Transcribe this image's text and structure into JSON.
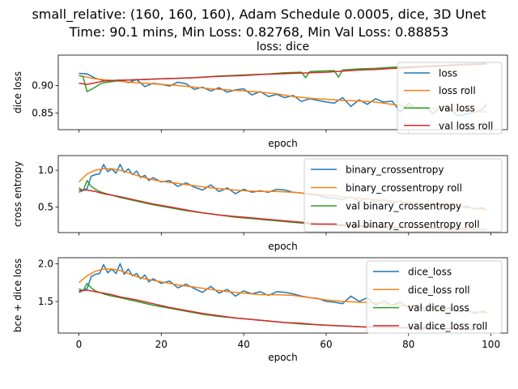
{
  "suptitle": [
    "small_relative: (160, 160, 160), Adam Schedule 0.0005, dice, 3D Unet",
    "Time: 90.1 mins, Min Loss: 0.82768, Min Val Loss: 0.88853"
  ],
  "colors": {
    "blue": "#1f77b4",
    "orange": "#ff7f0e",
    "green": "#2ca02c",
    "red": "#d62728"
  },
  "chart_data": [
    {
      "type": "line",
      "title": "loss: dice",
      "xlabel": "epoch",
      "ylabel": "dice loss",
      "xlim": [
        -5,
        104
      ],
      "ylim": [
        0.82,
        0.955
      ],
      "xticks": [
        0,
        20,
        40,
        60,
        80,
        100
      ],
      "xticklabels": [
        "",
        "",
        "",
        "",
        "",
        ""
      ],
      "yticks": [
        0.85,
        0.9
      ],
      "yticklabels": [
        "0.85",
        "0.90"
      ],
      "legend_position": "right",
      "series": [
        {
          "name": "loss",
          "color": "blue",
          "x": [
            0,
            2,
            4,
            6,
            8,
            10,
            12,
            14,
            16,
            18,
            20,
            22,
            24,
            26,
            28,
            30,
            32,
            34,
            36,
            38,
            40,
            42,
            44,
            46,
            48,
            50,
            52,
            54,
            56,
            58,
            60,
            62,
            64,
            66,
            68,
            70,
            72,
            74,
            76,
            78,
            80,
            82,
            84,
            86,
            88,
            90,
            92,
            94,
            96,
            98,
            99
          ],
          "y": [
            0.922,
            0.921,
            0.913,
            0.909,
            0.908,
            0.91,
            0.905,
            0.911,
            0.898,
            0.904,
            0.902,
            0.899,
            0.906,
            0.903,
            0.893,
            0.897,
            0.89,
            0.896,
            0.888,
            0.892,
            0.894,
            0.883,
            0.889,
            0.88,
            0.884,
            0.878,
            0.882,
            0.871,
            0.876,
            0.873,
            0.87,
            0.868,
            0.878,
            0.862,
            0.874,
            0.866,
            0.876,
            0.87,
            0.872,
            0.852,
            0.868,
            0.858,
            0.86,
            0.849,
            0.862,
            0.858,
            0.845,
            0.848,
            0.852,
            0.857,
            0.867
          ]
        },
        {
          "name": "loss roll",
          "color": "orange",
          "x": [
            0,
            4,
            8,
            12,
            16,
            20,
            24,
            28,
            32,
            36,
            40,
            44,
            48,
            52,
            56,
            60,
            64,
            68,
            72,
            76,
            80,
            84,
            88,
            92,
            96,
            99
          ],
          "y": [
            0.918,
            0.912,
            0.909,
            0.906,
            0.904,
            0.902,
            0.9,
            0.897,
            0.894,
            0.892,
            0.89,
            0.888,
            0.885,
            0.88,
            0.877,
            0.875,
            0.873,
            0.872,
            0.87,
            0.866,
            0.862,
            0.859,
            0.857,
            0.855,
            0.853,
            0.852
          ]
        },
        {
          "name": "val loss",
          "color": "green",
          "x": [
            0,
            1,
            2,
            3,
            4,
            5,
            6,
            8,
            10,
            12,
            16,
            20,
            24,
            28,
            30,
            34,
            40,
            46,
            50,
            54,
            55,
            56,
            58,
            62,
            63,
            64,
            68,
            72,
            76,
            80,
            84,
            88,
            92,
            96,
            99
          ],
          "y": [
            0.918,
            0.916,
            0.889,
            0.893,
            0.897,
            0.902,
            0.905,
            0.907,
            0.909,
            0.91,
            0.911,
            0.912,
            0.913,
            0.914,
            0.915,
            0.917,
            0.919,
            0.921,
            0.923,
            0.924,
            0.914,
            0.925,
            0.926,
            0.927,
            0.915,
            0.928,
            0.93,
            0.931,
            0.933,
            0.934,
            0.935,
            0.936,
            0.938,
            0.939,
            0.94
          ]
        },
        {
          "name": "val loss roll",
          "color": "red",
          "x": [
            0,
            2,
            4,
            6,
            8,
            12,
            16,
            20,
            24,
            28,
            32,
            36,
            40,
            44,
            48,
            52,
            56,
            60,
            64,
            68,
            72,
            76,
            80,
            84,
            88,
            92,
            96,
            99
          ],
          "y": [
            0.904,
            0.902,
            0.905,
            0.908,
            0.909,
            0.91,
            0.911,
            0.912,
            0.913,
            0.914,
            0.916,
            0.917,
            0.918,
            0.92,
            0.921,
            0.922,
            0.923,
            0.924,
            0.926,
            0.928,
            0.929,
            0.931,
            0.932,
            0.934,
            0.935,
            0.937,
            0.938,
            0.939
          ]
        }
      ]
    },
    {
      "type": "line",
      "xlabel": "epoch",
      "ylabel": "cross entropy",
      "xlim": [
        -5,
        104
      ],
      "ylim": [
        0.15,
        1.2
      ],
      "xticks": [
        0,
        20,
        40,
        60,
        80,
        100
      ],
      "xticklabels": [
        "",
        "",
        "",
        "",
        "",
        ""
      ],
      "yticks": [
        0.5,
        1.0
      ],
      "yticklabels": [
        "0.5",
        "1.0"
      ],
      "legend_position": "upper right",
      "series": [
        {
          "name": "binary_crossentropy",
          "color": "blue",
          "x": [
            0,
            2,
            3,
            4,
            5,
            6,
            7,
            8,
            9,
            10,
            11,
            12,
            13,
            14,
            15,
            16,
            17,
            18,
            20,
            22,
            24,
            26,
            28,
            30,
            32,
            34,
            36,
            38,
            40,
            42,
            44,
            46,
            48,
            50,
            52,
            54,
            56,
            58,
            60,
            62,
            64,
            66,
            68,
            70,
            72,
            74,
            76,
            78,
            80,
            82,
            84,
            86,
            88,
            90,
            92,
            94,
            96,
            98,
            99
          ],
          "y": [
            0.7,
            0.75,
            0.92,
            0.94,
            0.95,
            1.08,
            0.98,
            1.02,
            0.96,
            1.08,
            0.97,
            1.02,
            0.94,
            0.99,
            0.9,
            0.93,
            0.86,
            0.9,
            0.84,
            0.86,
            0.78,
            0.83,
            0.77,
            0.73,
            0.8,
            0.71,
            0.76,
            0.68,
            0.74,
            0.7,
            0.72,
            0.7,
            0.74,
            0.73,
            0.7,
            0.69,
            0.67,
            0.66,
            0.63,
            0.62,
            0.6,
            0.64,
            0.58,
            0.62,
            0.57,
            0.6,
            0.55,
            0.58,
            0.53,
            0.56,
            0.51,
            0.55,
            0.5,
            0.53,
            0.49,
            0.51,
            0.47,
            0.49,
            0.46
          ]
        },
        {
          "name": "binary_crossentropy roll",
          "color": "orange",
          "x": [
            0,
            2,
            4,
            6,
            8,
            10,
            12,
            14,
            16,
            18,
            20,
            24,
            28,
            32,
            36,
            40,
            44,
            48,
            52,
            56,
            60,
            64,
            68,
            72,
            76,
            80,
            84,
            88,
            92,
            96,
            99
          ],
          "y": [
            0.84,
            0.95,
            1.0,
            1.02,
            1.02,
            1.0,
            0.97,
            0.93,
            0.9,
            0.87,
            0.85,
            0.82,
            0.79,
            0.76,
            0.74,
            0.72,
            0.71,
            0.71,
            0.7,
            0.68,
            0.66,
            0.64,
            0.62,
            0.6,
            0.58,
            0.56,
            0.54,
            0.52,
            0.5,
            0.48,
            0.47
          ]
        },
        {
          "name": "val binary_crossentropy",
          "color": "green",
          "x": [
            0,
            1,
            2,
            3,
            4,
            5,
            6,
            8,
            10,
            14,
            18,
            22,
            26,
            30,
            34,
            38,
            42,
            46,
            50,
            54,
            58,
            62,
            66,
            70,
            74,
            78,
            82,
            86,
            90,
            94,
            99
          ],
          "y": [
            0.76,
            0.72,
            0.86,
            0.78,
            0.74,
            0.71,
            0.69,
            0.66,
            0.63,
            0.58,
            0.53,
            0.49,
            0.45,
            0.42,
            0.39,
            0.36,
            0.34,
            0.32,
            0.3,
            0.28,
            0.26,
            0.25,
            0.24,
            0.23,
            0.22,
            0.22,
            0.21,
            0.21,
            0.2,
            0.2,
            0.19
          ]
        },
        {
          "name": "val binary_crossentropy roll",
          "color": "red",
          "x": [
            0,
            2,
            4,
            6,
            8,
            10,
            14,
            18,
            22,
            26,
            30,
            34,
            38,
            42,
            46,
            50,
            54,
            58,
            62,
            66,
            70,
            74,
            78,
            82,
            86,
            90,
            94,
            96
          ],
          "y": [
            0.73,
            0.73,
            0.71,
            0.68,
            0.66,
            0.64,
            0.59,
            0.54,
            0.5,
            0.46,
            0.42,
            0.39,
            0.37,
            0.35,
            0.33,
            0.31,
            0.29,
            0.27,
            0.26,
            0.25,
            0.24,
            0.23,
            0.22,
            0.22,
            0.21,
            0.21,
            0.2,
            0.2
          ]
        }
      ]
    },
    {
      "type": "line",
      "xlabel": "epoch",
      "ylabel": "bce + dice loss",
      "xlim": [
        -5,
        104
      ],
      "ylim": [
        1.08,
        2.08
      ],
      "xticks": [
        0,
        20,
        40,
        60,
        80,
        100
      ],
      "xticklabels": [
        "0",
        "20",
        "40",
        "60",
        "80",
        "100"
      ],
      "yticks": [
        1.5,
        2.0
      ],
      "yticklabels": [
        "1.5",
        "2.0"
      ],
      "legend_position": "upper right",
      "series": [
        {
          "name": "dice_loss",
          "color": "blue",
          "x": [
            0,
            2,
            3,
            4,
            5,
            6,
            7,
            8,
            9,
            10,
            11,
            12,
            13,
            14,
            15,
            16,
            17,
            18,
            20,
            22,
            24,
            26,
            28,
            30,
            32,
            34,
            36,
            38,
            40,
            42,
            44,
            46,
            48,
            50,
            52,
            54,
            56,
            58,
            60,
            62,
            64,
            66,
            68,
            70,
            72,
            74,
            76,
            78,
            80,
            82,
            84,
            86,
            88,
            90,
            92,
            94,
            96,
            98,
            99
          ],
          "y": [
            1.62,
            1.67,
            1.83,
            1.86,
            1.87,
            1.99,
            1.88,
            1.93,
            1.87,
            2.0,
            1.86,
            1.93,
            1.84,
            1.87,
            1.8,
            1.85,
            1.76,
            1.8,
            1.74,
            1.77,
            1.68,
            1.73,
            1.67,
            1.62,
            1.7,
            1.61,
            1.66,
            1.57,
            1.64,
            1.6,
            1.63,
            1.58,
            1.63,
            1.62,
            1.6,
            1.57,
            1.55,
            1.54,
            1.5,
            1.49,
            1.47,
            1.57,
            1.5,
            1.55,
            1.45,
            1.51,
            1.45,
            1.49,
            1.42,
            1.46,
            1.38,
            1.45,
            1.37,
            1.42,
            1.36,
            1.39,
            1.34,
            1.37,
            1.35
          ]
        },
        {
          "name": "dice_loss roll",
          "color": "orange",
          "x": [
            0,
            2,
            4,
            6,
            8,
            10,
            12,
            14,
            16,
            18,
            20,
            24,
            28,
            32,
            36,
            40,
            44,
            48,
            52,
            56,
            60,
            64,
            68,
            72,
            76,
            80,
            84,
            88,
            92,
            96,
            99
          ],
          "y": [
            1.75,
            1.84,
            1.9,
            1.93,
            1.93,
            1.91,
            1.87,
            1.83,
            1.8,
            1.78,
            1.76,
            1.72,
            1.69,
            1.66,
            1.63,
            1.61,
            1.59,
            1.59,
            1.58,
            1.55,
            1.52,
            1.5,
            1.49,
            1.48,
            1.46,
            1.44,
            1.42,
            1.4,
            1.38,
            1.36,
            1.35
          ]
        },
        {
          "name": "val dice_loss",
          "color": "green",
          "x": [
            0,
            1,
            2,
            3,
            4,
            5,
            6,
            8,
            10,
            14,
            18,
            22,
            26,
            30,
            34,
            38,
            42,
            46,
            50,
            54,
            58,
            62,
            66,
            70,
            74,
            78,
            82,
            83,
            84,
            86,
            90,
            94,
            99
          ],
          "y": [
            1.67,
            1.64,
            1.74,
            1.68,
            1.64,
            1.62,
            1.6,
            1.57,
            1.55,
            1.5,
            1.45,
            1.41,
            1.37,
            1.33,
            1.3,
            1.28,
            1.26,
            1.24,
            1.22,
            1.2,
            1.19,
            1.18,
            1.17,
            1.16,
            1.16,
            1.15,
            1.15,
            1.11,
            1.15,
            1.14,
            1.14,
            1.13,
            1.13
          ]
        },
        {
          "name": "val dice_loss roll",
          "color": "red",
          "x": [
            0,
            2,
            4,
            6,
            8,
            10,
            14,
            18,
            22,
            26,
            30,
            34,
            38,
            42,
            46,
            50,
            54,
            58,
            62,
            66,
            70,
            74,
            78,
            82,
            86,
            90,
            94,
            96
          ],
          "y": [
            1.64,
            1.65,
            1.63,
            1.61,
            1.59,
            1.56,
            1.52,
            1.47,
            1.42,
            1.38,
            1.34,
            1.31,
            1.28,
            1.26,
            1.24,
            1.22,
            1.21,
            1.19,
            1.18,
            1.17,
            1.16,
            1.16,
            1.15,
            1.15,
            1.14,
            1.14,
            1.13,
            1.13
          ]
        }
      ]
    }
  ]
}
